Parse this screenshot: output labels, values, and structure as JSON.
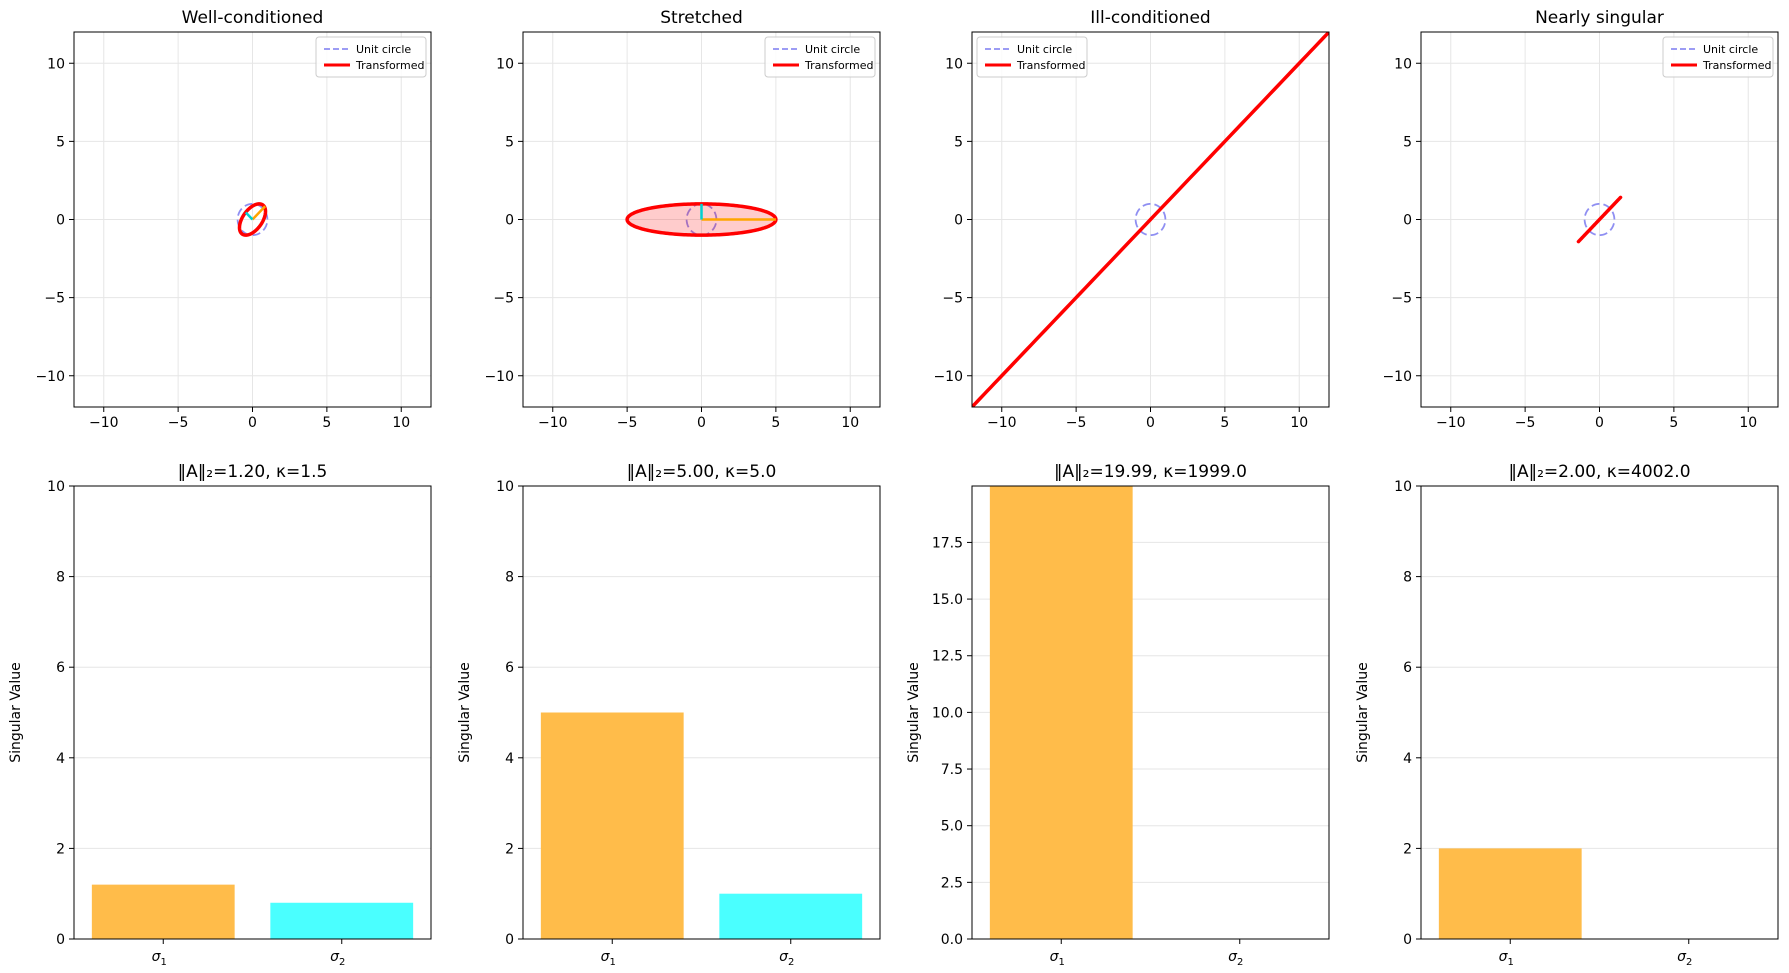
{
  "chart_data": [
    {
      "type": "line",
      "title": "Well-conditioned",
      "xlim": [
        -12,
        12
      ],
      "ylim": [
        -12,
        12
      ],
      "xticks": [
        -10,
        -5,
        0,
        5,
        10
      ],
      "yticks": [
        -10,
        -5,
        0,
        5,
        10
      ],
      "grid": true,
      "legend": {
        "placement": "top-right",
        "entries": [
          "Unit circle",
          "Transformed"
        ]
      },
      "series": [
        {
          "name": "Unit circle",
          "color": "#7b7bf0",
          "style": "dashed",
          "shape": "circle",
          "radius": 1
        },
        {
          "name": "Transformed",
          "color": "#ff0000",
          "matrix": [
            [
              0.75,
              0.45
            ],
            [
              0.0,
              1.0
            ]
          ]
        }
      ],
      "singular_vectors": [
        {
          "color": "#ffa500",
          "vector": [
            0.85,
            0.85
          ]
        },
        {
          "color": "#00d0d0",
          "vector": [
            -0.45,
            0.45
          ]
        }
      ]
    },
    {
      "type": "line",
      "title": "Stretched",
      "xlim": [
        -12,
        12
      ],
      "ylim": [
        -12,
        12
      ],
      "xticks": [
        -10,
        -5,
        0,
        5,
        10
      ],
      "yticks": [
        -10,
        -5,
        0,
        5,
        10
      ],
      "grid": true,
      "legend": {
        "placement": "top-right",
        "entries": [
          "Unit circle",
          "Transformed"
        ]
      },
      "series": [
        {
          "name": "Unit circle",
          "color": "#7b7bf0",
          "style": "dashed",
          "shape": "circle",
          "radius": 1
        },
        {
          "name": "Transformed",
          "color": "#ff0000",
          "matrix": [
            [
              5,
              0
            ],
            [
              0,
              1
            ]
          ],
          "filled": true
        }
      ],
      "singular_vectors": [
        {
          "color": "#ffa500",
          "vector": [
            5,
            0
          ]
        },
        {
          "color": "#00d0d0",
          "vector": [
            0,
            1
          ]
        }
      ]
    },
    {
      "type": "line",
      "title": "Ill-conditioned",
      "xlim": [
        -12,
        12
      ],
      "ylim": [
        -12,
        12
      ],
      "xticks": [
        -10,
        -5,
        0,
        5,
        10
      ],
      "yticks": [
        -10,
        -5,
        0,
        5,
        10
      ],
      "grid": true,
      "legend": {
        "placement": "top-left",
        "entries": [
          "Unit circle",
          "Transformed"
        ]
      },
      "series": [
        {
          "name": "Unit circle",
          "color": "#7b7bf0",
          "style": "dashed",
          "shape": "circle",
          "radius": 1
        },
        {
          "name": "Transformed",
          "color": "#ff0000",
          "matrix": [
            [
              10,
              10
            ],
            [
              10,
              10
            ]
          ]
        }
      ],
      "singular_vectors": []
    },
    {
      "type": "line",
      "title": "Nearly singular",
      "xlim": [
        -12,
        12
      ],
      "ylim": [
        -12,
        12
      ],
      "xticks": [
        -10,
        -5,
        0,
        5,
        10
      ],
      "yticks": [
        -10,
        -5,
        0,
        5,
        10
      ],
      "grid": true,
      "legend": {
        "placement": "top-right",
        "entries": [
          "Unit circle",
          "Transformed"
        ]
      },
      "series": [
        {
          "name": "Unit circle",
          "color": "#7b7bf0",
          "style": "dashed",
          "shape": "circle",
          "radius": 1
        },
        {
          "name": "Transformed",
          "color": "#ff0000",
          "matrix": [
            [
              1,
              1
            ],
            [
              1,
              1.0005
            ]
          ]
        }
      ],
      "singular_vectors": []
    },
    {
      "type": "bar",
      "title": "‖A‖₂=1.20, κ=1.5",
      "ylabel": "Singular Value",
      "categories": [
        "σ1",
        "σ2"
      ],
      "values": [
        1.2,
        0.8
      ],
      "colors": [
        "#ffbc4a",
        "#4affff"
      ],
      "ylim": [
        0,
        10
      ],
      "yticks": [
        0,
        2,
        4,
        6,
        8,
        10
      ],
      "ytick_labels": [
        "0",
        "2",
        "4",
        "6",
        "8",
        "10"
      ],
      "grid": true
    },
    {
      "type": "bar",
      "title": "‖A‖₂=5.00, κ=5.0",
      "ylabel": "Singular Value",
      "categories": [
        "σ1",
        "σ2"
      ],
      "values": [
        5.0,
        1.0
      ],
      "colors": [
        "#ffbc4a",
        "#4affff"
      ],
      "ylim": [
        0,
        10
      ],
      "yticks": [
        0,
        2,
        4,
        6,
        8,
        10
      ],
      "ytick_labels": [
        "0",
        "2",
        "4",
        "6",
        "8",
        "10"
      ],
      "grid": true
    },
    {
      "type": "bar",
      "title": "‖A‖₂=19.99, κ=1999.0",
      "ylabel": "Singular Value",
      "categories": [
        "σ1",
        "σ2"
      ],
      "values": [
        19.99,
        0.01
      ],
      "colors": [
        "#ffbc4a",
        "#4affff"
      ],
      "ylim": [
        0,
        19.99
      ],
      "yticks": [
        0,
        2.5,
        5,
        7.5,
        10,
        12.5,
        15,
        17.5
      ],
      "ytick_labels": [
        "0.0",
        "2.5",
        "5.0",
        "7.5",
        "10.0",
        "12.5",
        "15.0",
        "17.5"
      ],
      "grid": true
    },
    {
      "type": "bar",
      "title": "‖A‖₂=2.00, κ=4002.0",
      "ylabel": "Singular Value",
      "categories": [
        "σ1",
        "σ2"
      ],
      "values": [
        2.0,
        0.0005
      ],
      "colors": [
        "#ffbc4a",
        "#4affff"
      ],
      "ylim": [
        0,
        10
      ],
      "yticks": [
        0,
        2,
        4,
        6,
        8,
        10
      ],
      "ytick_labels": [
        "0",
        "2",
        "4",
        "6",
        "8",
        "10"
      ],
      "grid": true
    }
  ]
}
